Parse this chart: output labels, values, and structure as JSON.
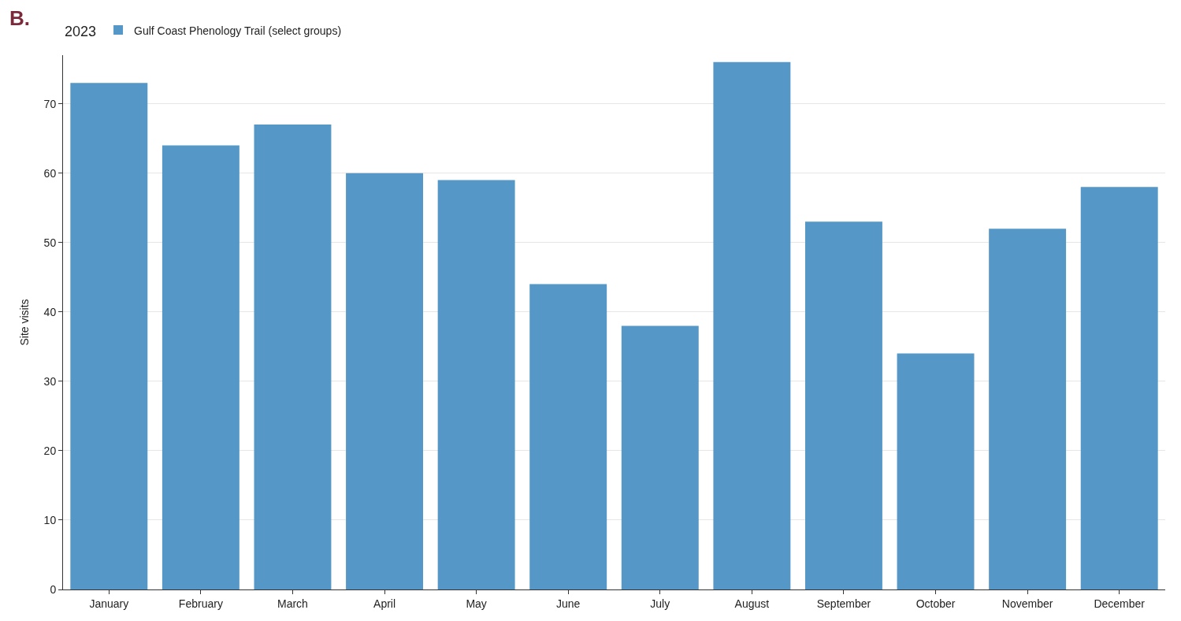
{
  "chart_data": {
    "type": "bar",
    "legend_title": "2023",
    "ylabel": "Site visits",
    "annotations": [
      "B."
    ],
    "categories": [
      "January",
      "February",
      "March",
      "April",
      "May",
      "June",
      "July",
      "August",
      "September",
      "October",
      "November",
      "December"
    ],
    "series": [
      {
        "name": "Gulf Coast Phenology Trail (select groups)",
        "color": "#5597c6",
        "values": [
          73,
          64,
          67,
          60,
          59,
          44,
          38,
          76,
          53,
          34,
          52,
          58
        ]
      }
    ],
    "ylim": [
      0,
      77
    ],
    "yticks": [
      0,
      10,
      20,
      30,
      40,
      50,
      60,
      70
    ],
    "grid": "y",
    "legend": "top left"
  }
}
